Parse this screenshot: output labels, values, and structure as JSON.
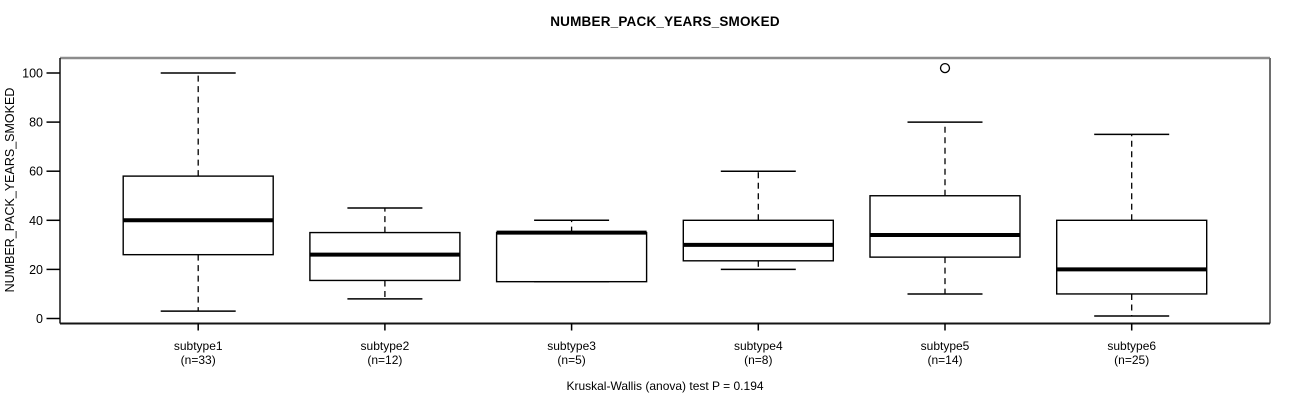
{
  "chart_data": {
    "type": "boxplot",
    "title": "NUMBER_PACK_YEARS_SMOKED",
    "ylabel": "NUMBER_PACK_YEARS_SMOKED",
    "xlabel": "",
    "footnote": "Kruskal-Wallis (anova) test P = 0.194",
    "kruskal_wallis_p": 0.194,
    "ylim": [
      0,
      100
    ],
    "y_ticks": [
      0,
      20,
      40,
      60,
      80,
      100
    ],
    "grid": false,
    "legend": "none",
    "colors": {
      "stroke": "#000000",
      "box_fill": "#ffffff",
      "background": "#ffffff"
    },
    "groups": [
      {
        "label": "subtype1",
        "n": 33,
        "count_label": "(n=33)",
        "whisker_low": 3,
        "q1": 26,
        "median": 40,
        "q3": 58,
        "whisker_high": 100,
        "outliers": []
      },
      {
        "label": "subtype2",
        "n": 12,
        "count_label": "(n=12)",
        "whisker_low": 8,
        "q1": 15.5,
        "median": 26,
        "q3": 35,
        "whisker_high": 45,
        "outliers": []
      },
      {
        "label": "subtype3",
        "n": 5,
        "count_label": "(n=5)",
        "whisker_low": 15,
        "q1": 15,
        "median": 35,
        "q3": 35,
        "whisker_high": 40,
        "outliers": []
      },
      {
        "label": "subtype4",
        "n": 8,
        "count_label": "(n=8)",
        "whisker_low": 20,
        "q1": 23.5,
        "median": 30,
        "q3": 40,
        "whisker_high": 60,
        "outliers": []
      },
      {
        "label": "subtype5",
        "n": 14,
        "count_label": "(n=14)",
        "whisker_low": 10,
        "q1": 25,
        "median": 34,
        "q3": 50,
        "whisker_high": 80,
        "outliers": [
          102
        ]
      },
      {
        "label": "subtype6",
        "n": 25,
        "count_label": "(n=25)",
        "whisker_low": 1,
        "q1": 10,
        "median": 20,
        "q3": 40,
        "whisker_high": 75,
        "outliers": []
      }
    ]
  }
}
